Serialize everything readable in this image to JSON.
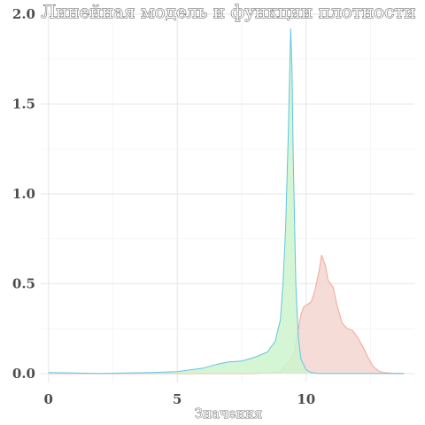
{
  "chart_data": {
    "type": "area",
    "title": "Линейная модель и функции плотности",
    "xlabel": "Значения",
    "ylabel": "",
    "xlim": [
      -0.3,
      14.2
    ],
    "ylim": [
      -0.05,
      2.02
    ],
    "x_ticks": [
      "0",
      "5",
      "10"
    ],
    "x_tick_values": [
      0,
      5,
      10
    ],
    "y_ticks": [
      "0.0",
      "0.5",
      "1.0",
      "1.5",
      "2.0"
    ],
    "y_tick_values": [
      0,
      0.5,
      1.0,
      1.5,
      2.0
    ],
    "grid": true,
    "legend": "none",
    "series": [
      {
        "color_fill": "#cdf5cd",
        "color_line": "#62c4e4",
        "x": [
          0,
          1,
          2,
          3,
          4,
          5,
          6,
          6.5,
          7,
          7.5,
          8,
          8.5,
          8.8,
          9.0,
          9.1,
          9.2,
          9.3,
          9.35,
          9.4,
          9.45,
          9.5,
          9.6,
          9.7,
          9.8,
          10.0,
          10.2,
          10.5,
          11,
          12,
          13,
          13.8
        ],
        "values": [
          0.005,
          0.003,
          0.0,
          0.003,
          0.005,
          0.01,
          0.03,
          0.05,
          0.065,
          0.07,
          0.09,
          0.12,
          0.18,
          0.3,
          0.5,
          0.8,
          1.3,
          1.6,
          1.92,
          1.7,
          1.2,
          0.5,
          0.2,
          0.08,
          0.02,
          0.005,
          0.0,
          0.0,
          0.0,
          0.0,
          0.0
        ]
      },
      {
        "color_fill": "#f3d6d0",
        "color_line": "#f4a89a",
        "x": [
          0,
          5,
          8,
          9,
          9.5,
          9.7,
          9.8,
          9.9,
          10.0,
          10.2,
          10.35,
          10.5,
          10.6,
          10.75,
          10.85,
          10.95,
          11.05,
          11.2,
          11.4,
          11.6,
          11.8,
          12.0,
          12.2,
          12.4,
          12.6,
          12.8,
          13.0,
          13.3,
          13.8
        ],
        "values": [
          0.0,
          0.0,
          0.0,
          0.01,
          0.1,
          0.25,
          0.33,
          0.37,
          0.38,
          0.4,
          0.47,
          0.57,
          0.66,
          0.6,
          0.52,
          0.5,
          0.48,
          0.38,
          0.28,
          0.25,
          0.24,
          0.2,
          0.15,
          0.09,
          0.04,
          0.015,
          0.005,
          0.002,
          0.0
        ]
      }
    ]
  }
}
